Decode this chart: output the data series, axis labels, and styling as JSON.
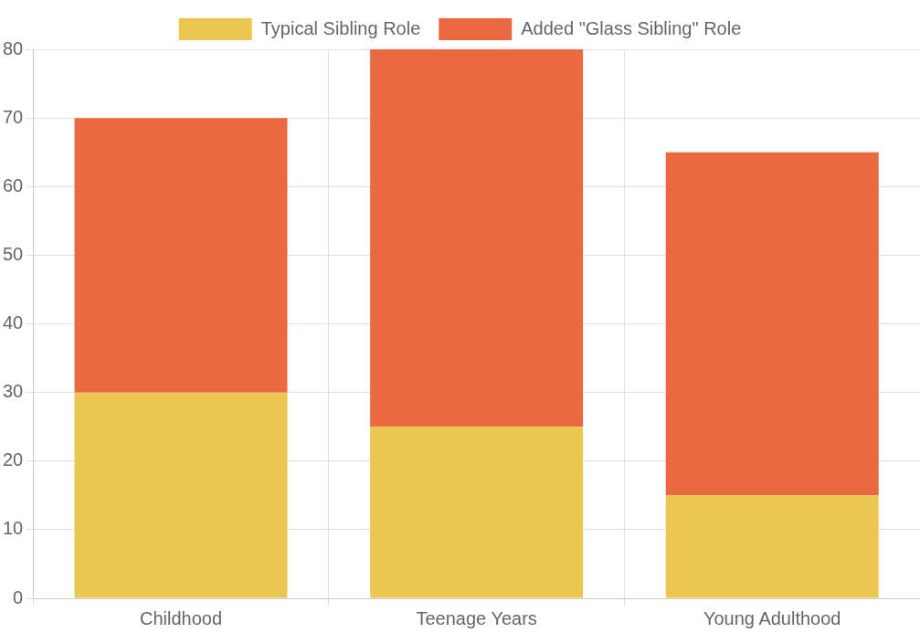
{
  "chart_data": {
    "type": "bar",
    "stacked": true,
    "categories": [
      "Childhood",
      "Teenage Years",
      "Young Adulthood"
    ],
    "series": [
      {
        "name": "Typical Sibling Role",
        "color": "#ebc751",
        "values": [
          30,
          25,
          15
        ]
      },
      {
        "name": "Added \"Glass Sibling\" Role",
        "color": "#eb6841",
        "values": [
          40,
          55,
          50
        ]
      }
    ],
    "ylim": [
      0,
      80
    ],
    "yticks": [
      0,
      10,
      20,
      30,
      40,
      50,
      60,
      70,
      80
    ],
    "grid": true,
    "legend": "top"
  }
}
